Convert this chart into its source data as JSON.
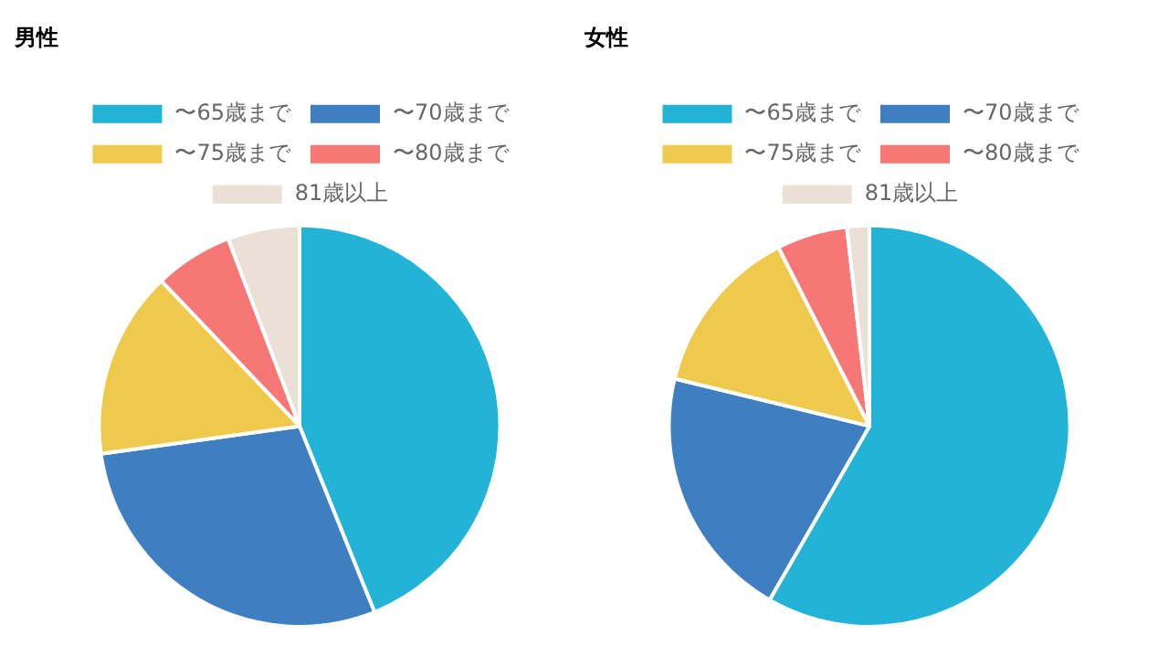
{
  "chart_data": [
    {
      "type": "pie",
      "title": "男性",
      "categories": [
        "〜65歳まで",
        "〜70歳まで",
        "〜75歳まで",
        "〜80歳まで",
        "81歳以上"
      ],
      "values": [
        43.9,
        28.9,
        15.1,
        6.3,
        5.8
      ],
      "colors": [
        "#22b3d6",
        "#3e7fc1",
        "#efc94c",
        "#f77777",
        "#ebe0d6"
      ],
      "legend": "top"
    },
    {
      "type": "pie",
      "title": "女性",
      "categories": [
        "〜65歳まで",
        "〜70歳まで",
        "〜75歳まで",
        "〜80歳まで",
        "81歳以上"
      ],
      "values": [
        58.3,
        20.5,
        13.7,
        5.7,
        1.8
      ],
      "colors": [
        "#22b3d6",
        "#3e7fc1",
        "#efc94c",
        "#f77777",
        "#ebe0d6"
      ],
      "legend": "top"
    }
  ]
}
